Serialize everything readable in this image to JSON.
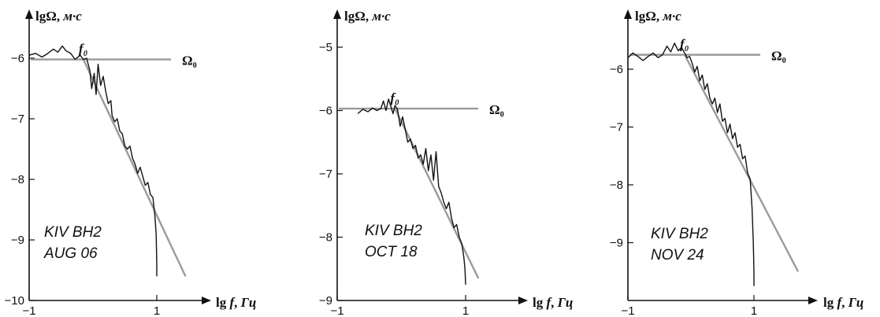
{
  "chart_data": [
    {
      "type": "line",
      "ylabel_main": "lgΩ,",
      "ylabel_unit": "м·с",
      "xlabel_main": "lg f,",
      "xlabel_unit": "Гц",
      "xlim": [
        -1,
        1.3
      ],
      "ylim": [
        -10,
        -5.5
      ],
      "xticks": [
        -1,
        1
      ],
      "yticks": [
        -10,
        -9,
        -8,
        -7,
        -6
      ],
      "annotation": [
        "KIV BH2",
        "AUG 06"
      ],
      "omega_label": "Ω₀",
      "f0_label": "f₀",
      "omega0": -6.02,
      "f0": -0.15,
      "fit_end": [
        1.45,
        -9.6
      ],
      "series": [
        {
          "x": [
            -1.0,
            -0.9,
            -0.8,
            -0.72,
            -0.62,
            -0.55,
            -0.48,
            -0.42,
            -0.35,
            -0.28,
            -0.2,
            -0.15,
            -0.1,
            -0.05,
            -0.02,
            0.02,
            0.05,
            0.08,
            0.12,
            0.16,
            0.2,
            0.24,
            0.28,
            0.3,
            0.34,
            0.38,
            0.42,
            0.46,
            0.5,
            0.54,
            0.58,
            0.62,
            0.66,
            0.7,
            0.74,
            0.78,
            0.82,
            0.86,
            0.9,
            0.94,
            0.97,
            0.99,
            1.0,
            1.0
          ],
          "y": [
            -5.95,
            -5.92,
            -5.98,
            -5.93,
            -5.85,
            -5.9,
            -5.8,
            -5.88,
            -5.92,
            -6.02,
            -5.95,
            -6.02,
            -6.0,
            -6.2,
            -6.5,
            -6.25,
            -6.6,
            -6.1,
            -6.45,
            -6.3,
            -6.55,
            -6.75,
            -6.7,
            -6.95,
            -7.05,
            -7.0,
            -7.2,
            -7.25,
            -7.45,
            -7.5,
            -7.45,
            -7.65,
            -7.75,
            -7.9,
            -7.8,
            -7.95,
            -8.1,
            -8.05,
            -8.25,
            -8.3,
            -8.6,
            -8.9,
            -9.4,
            -9.6
          ]
        }
      ]
    },
    {
      "type": "line",
      "ylabel_main": "lgΩ,",
      "ylabel_unit": "м·с",
      "xlabel_main": "lg f,",
      "xlabel_unit": "Гц",
      "xlim": [
        -1,
        1.3
      ],
      "ylim": [
        -9,
        -4.5
      ],
      "xticks": [
        -1,
        1
      ],
      "yticks": [
        -9,
        -8,
        -7,
        -6,
        -5
      ],
      "annotation": [
        "KIV BH2",
        "OCT 18"
      ],
      "omega_label": "Ω₀",
      "f0_label": "f₀",
      "omega0": -5.97,
      "f0": -0.1,
      "fit_end": [
        1.2,
        -8.65
      ],
      "series": [
        {
          "x": [
            -0.68,
            -0.6,
            -0.52,
            -0.45,
            -0.38,
            -0.32,
            -0.28,
            -0.24,
            -0.2,
            -0.16,
            -0.13,
            -0.1,
            -0.06,
            -0.02,
            0.02,
            0.06,
            0.1,
            0.14,
            0.18,
            0.22,
            0.26,
            0.3,
            0.34,
            0.38,
            0.42,
            0.46,
            0.5,
            0.54,
            0.58,
            0.62,
            0.66,
            0.7,
            0.74,
            0.78,
            0.82,
            0.86,
            0.9,
            0.94,
            0.97,
            0.99,
            1.0
          ],
          "y": [
            -6.05,
            -5.98,
            -6.02,
            -5.96,
            -6.0,
            -5.97,
            -5.85,
            -6.0,
            -5.82,
            -5.95,
            -6.05,
            -5.92,
            -5.98,
            -6.25,
            -6.1,
            -6.3,
            -6.5,
            -6.45,
            -6.6,
            -6.55,
            -6.75,
            -6.7,
            -6.85,
            -6.6,
            -6.95,
            -6.7,
            -7.1,
            -6.65,
            -7.2,
            -7.3,
            -7.45,
            -7.55,
            -7.45,
            -7.7,
            -7.85,
            -7.8,
            -8.0,
            -8.1,
            -8.3,
            -8.5,
            -8.75
          ]
        }
      ]
    },
    {
      "type": "line",
      "ylabel_main": "lgΩ,",
      "ylabel_unit": "м·с",
      "xlabel_main": "lg f,",
      "xlabel_unit": "Гц",
      "xlim": [
        -1,
        1.3
      ],
      "ylim": [
        -10,
        -5.2
      ],
      "xticks": [
        -1,
        1
      ],
      "yticks": [
        -9,
        -8,
        -7,
        -6
      ],
      "annotation": [
        "KIV BH2",
        "NOV 24"
      ],
      "omega_label": "Ω₀",
      "f0_label": "f₀",
      "omega0": -5.75,
      "f0": -0.1,
      "fit_end": [
        1.7,
        -9.5
      ],
      "series": [
        {
          "x": [
            -1.0,
            -0.92,
            -0.84,
            -0.76,
            -0.68,
            -0.6,
            -0.52,
            -0.45,
            -0.38,
            -0.32,
            -0.26,
            -0.2,
            -0.15,
            -0.1,
            -0.06,
            -0.02,
            0.02,
            0.06,
            0.1,
            0.14,
            0.18,
            0.22,
            0.26,
            0.3,
            0.34,
            0.38,
            0.42,
            0.46,
            0.5,
            0.54,
            0.58,
            0.62,
            0.66,
            0.7,
            0.74,
            0.78,
            0.82,
            0.86,
            0.9,
            0.94,
            0.97,
            0.99,
            1.0,
            1.0
          ],
          "y": [
            -5.8,
            -5.72,
            -5.78,
            -5.85,
            -5.78,
            -5.72,
            -5.8,
            -5.75,
            -5.6,
            -5.7,
            -5.55,
            -5.68,
            -5.62,
            -5.72,
            -5.8,
            -5.78,
            -5.9,
            -6.05,
            -5.95,
            -6.2,
            -6.1,
            -6.35,
            -6.25,
            -6.5,
            -6.6,
            -6.5,
            -6.75,
            -6.6,
            -6.9,
            -6.85,
            -7.1,
            -6.95,
            -7.2,
            -7.1,
            -7.35,
            -7.3,
            -7.55,
            -7.5,
            -7.8,
            -7.9,
            -8.4,
            -9.0,
            -9.5,
            -9.75
          ]
        }
      ]
    }
  ]
}
